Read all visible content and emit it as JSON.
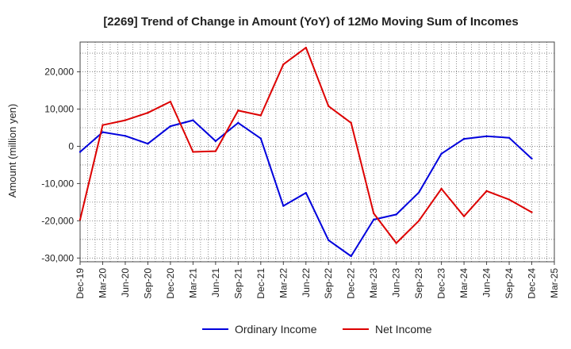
{
  "chart_data": {
    "type": "line",
    "title": "[2269]  Trend of Change in Amount (YoY) of 12Mo Moving Sum of Incomes",
    "ylabel": "Amount (million yen)",
    "xlabel": "",
    "ylim": [
      -31000,
      28000
    ],
    "yticks": [
      -30000,
      -20000,
      -10000,
      0,
      10000,
      20000
    ],
    "ytick_labels": [
      "-30,000",
      "-20,000",
      "-10,000",
      "0",
      "10,000",
      "20,000"
    ],
    "x": [
      "Dec-19",
      "Mar-20",
      "Jun-20",
      "Sep-20",
      "Dec-20",
      "Mar-21",
      "Jun-21",
      "Sep-21",
      "Dec-21",
      "Mar-22",
      "Jun-22",
      "Sep-22",
      "Dec-22",
      "Mar-23",
      "Jun-23",
      "Sep-23",
      "Dec-23",
      "Mar-24",
      "Jun-24",
      "Sep-24",
      "Dec-24",
      "Mar-25"
    ],
    "grid": true,
    "legend_position": "bottom",
    "series": [
      {
        "name": "Ordinary Income",
        "color": "#0000dd",
        "values": [
          -1500,
          3800,
          2800,
          700,
          5400,
          7000,
          1400,
          6300,
          2100,
          -16000,
          -12500,
          -25200,
          -29500,
          -19700,
          -18300,
          -12400,
          -2000,
          2000,
          2700,
          2300,
          -3300,
          null
        ]
      },
      {
        "name": "Net Income",
        "color": "#dd0000",
        "values": [
          -19700,
          5700,
          7000,
          9000,
          12000,
          -1500,
          -1300,
          9600,
          8300,
          22000,
          26500,
          10800,
          6300,
          -18000,
          -26000,
          -20000,
          -11400,
          -18800,
          -12000,
          -14300,
          -17700,
          null
        ]
      }
    ]
  }
}
